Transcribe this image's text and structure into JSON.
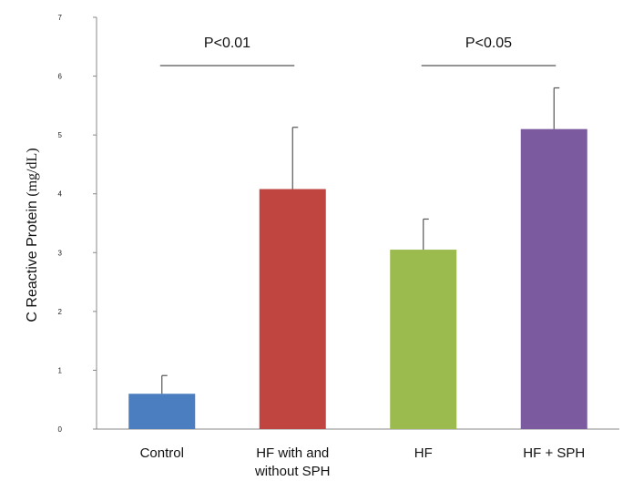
{
  "chart_data": {
    "type": "bar",
    "title": "",
    "xlabel": "",
    "ylabel_text": "C Reactive Protein",
    "ylabel_unit": "(mg/dL)",
    "ylim": [
      0,
      7
    ],
    "yticks": [
      0,
      1,
      2,
      3,
      4,
      5,
      6,
      7
    ],
    "categories": [
      {
        "lines": [
          "Control"
        ]
      },
      {
        "lines": [
          "HF with and",
          "without SPH"
        ]
      },
      {
        "lines": [
          "HF"
        ]
      },
      {
        "lines": [
          "HF + SPH"
        ]
      }
    ],
    "values": [
      0.6,
      4.08,
      3.05,
      5.1
    ],
    "errors": [
      0.31,
      1.05,
      0.52,
      0.7
    ],
    "colors": [
      "#4A7EC0",
      "#C0443F",
      "#9BBB4F",
      "#7C5A9F"
    ],
    "annotations": [
      {
        "text": "P<0.01",
        "from_category": 0,
        "to_category": 1
      },
      {
        "text": "P<0.05",
        "from_category": 2,
        "to_category": 3
      }
    ],
    "grid": false,
    "legend": "none"
  }
}
